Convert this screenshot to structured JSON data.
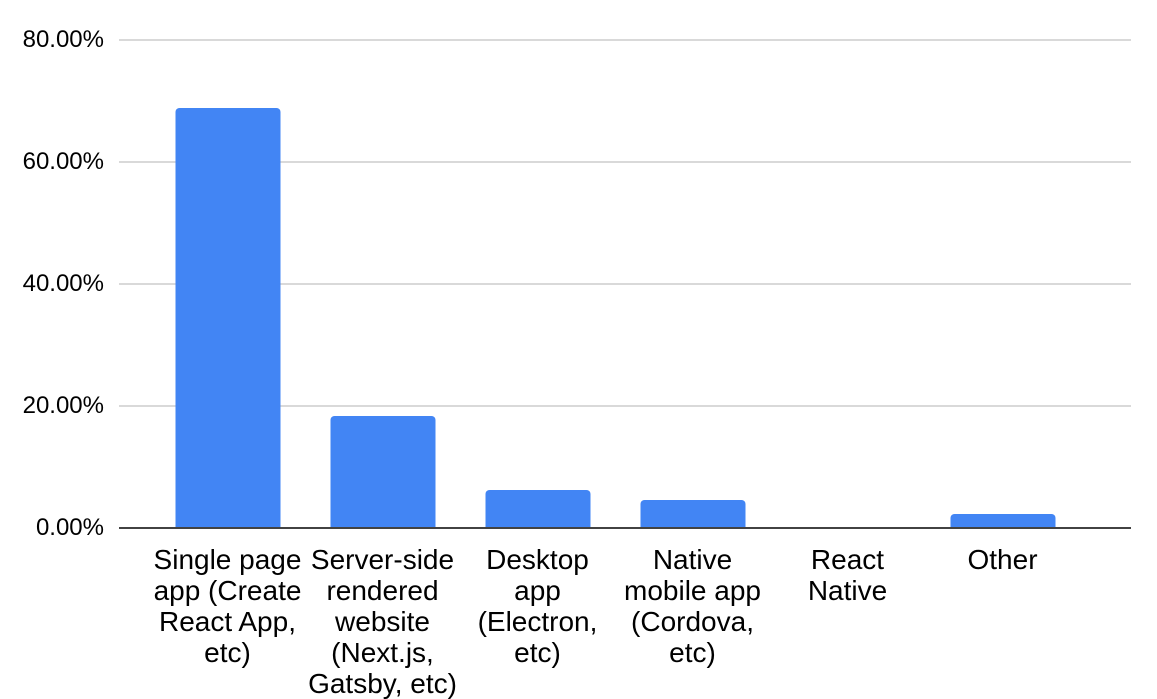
{
  "chart_data": {
    "type": "bar",
    "title": "",
    "xlabel": "",
    "ylabel": "",
    "categories": [
      "Single page app (Create React App, etc)",
      "Server-side rendered website (Next.js, Gatsby, etc)",
      "Desktop app (Electron, etc)",
      "Native mobile app (Cordova, etc)",
      "React Native",
      "Other"
    ],
    "values": [
      68.8,
      18.4,
      6.2,
      4.6,
      0,
      2.3
    ],
    "unit": "%",
    "y_tick_labels": [
      "0.00%",
      "20.00%",
      "40.00%",
      "60.00%",
      "80.00%"
    ],
    "y_tick_values": [
      0,
      20,
      40,
      60,
      80
    ],
    "ylim": [
      0,
      80
    ],
    "grid": "horizontal",
    "legend": "none",
    "colors": {
      "bar": "#4285f4",
      "gridline": "#d9d9d9",
      "axis_line": "#424242",
      "text": "#000000",
      "background": "#ffffff"
    }
  }
}
